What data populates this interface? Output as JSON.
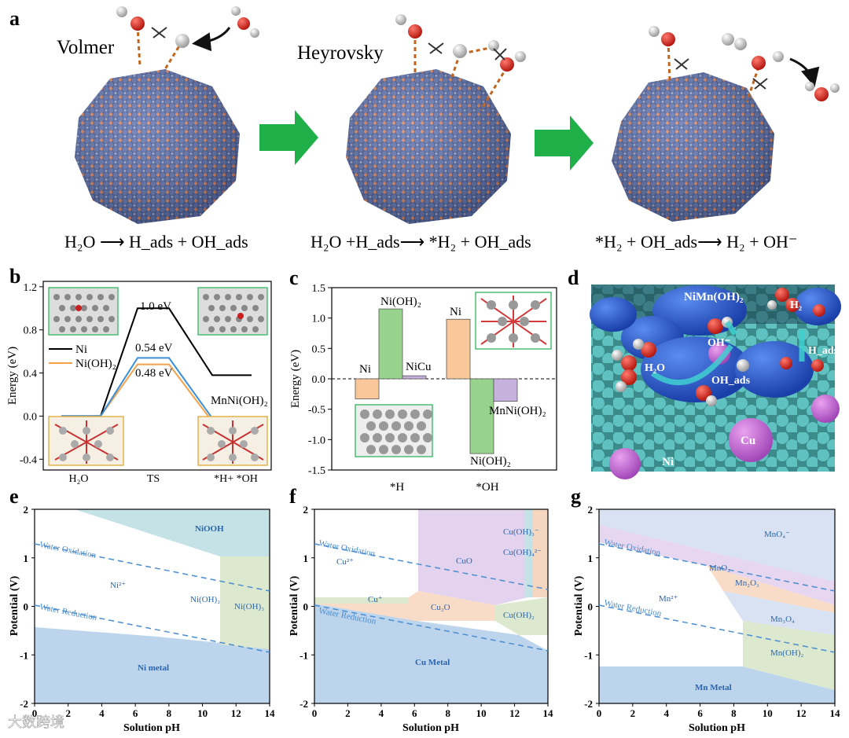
{
  "panel_labels": {
    "a": "a",
    "b": "b",
    "c": "c",
    "d": "d",
    "e": "e",
    "f": "f",
    "g": "g"
  },
  "panel_a": {
    "step1_label": "Volmer",
    "step2_label": "Heyrovsky",
    "eq1": "H₂O ⟶ H_ads + OH_ads",
    "eq2": "H₂O +H_ads⟶ *H₂ + OH_ads",
    "eq3": "*H₂ + OH_ads⟶ H₂ + OH⁻",
    "colors": {
      "arrow": "#1fb04a",
      "ni_atom": "#5b6fa8",
      "cu_atom": "#d97b5c",
      "dash": "#c0661f"
    }
  },
  "panel_d": {
    "labels": [
      "NiMn(OH)₂",
      "H₂",
      "OH⁻",
      "H₂O",
      "OH_ads",
      "H_ads",
      "Cu",
      "Ni"
    ]
  },
  "watermark": "大数跨境",
  "chart_data": [
    {
      "panel": "b",
      "type": "line",
      "xlabel": "",
      "ylabel": "Energy (eV)",
      "ylim": [
        -0.5,
        1.25
      ],
      "yticks": [
        "-0.4",
        "0.0",
        "0.4",
        "0.8",
        "1.2"
      ],
      "categories": [
        "H₂O",
        "TS",
        "*H+ *OH"
      ],
      "series": [
        {
          "name": "Ni",
          "color": "#000000",
          "values": [
            0.0,
            1.0,
            0.38
          ]
        },
        {
          "name": "Ni(OH)₂",
          "color": "#f5a04a",
          "values": [
            0.0,
            0.48,
            -0.05
          ]
        },
        {
          "name": "",
          "color": "#3a8fd9",
          "values": [
            0.0,
            0.54,
            -0.02
          ]
        }
      ],
      "annotations": [
        "1.0 eV",
        "0.54 eV",
        "0.48 eV",
        "MnNi(OH)₂"
      ]
    },
    {
      "panel": "c",
      "type": "bar",
      "ylabel": "Energy (eV)",
      "ylim": [
        -1.5,
        1.5
      ],
      "yticks": [
        "-1.5",
        "-1.0",
        "-0.5",
        "0.0",
        "0.5",
        "1.0",
        "1.5"
      ],
      "categories": [
        "*H",
        "*OH"
      ],
      "series": [
        {
          "name": "Ni",
          "color": "#f9c79a",
          "values": [
            -0.33,
            0.98
          ]
        },
        {
          "name": "Ni(OH)₂",
          "color": "#98d38e",
          "values": [
            1.15,
            -1.23
          ]
        },
        {
          "name": "NiCu",
          "color": "#c6b0dc",
          "values": [
            0.05,
            null
          ]
        },
        {
          "name": "MnNi(OH)₂",
          "color": "#c6b0dc",
          "values": [
            null,
            -0.37
          ]
        }
      ]
    },
    {
      "panel": "e",
      "type": "area",
      "xlabel": "Solution pH",
      "ylabel": "Potential (V)",
      "xlim": [
        0,
        14
      ],
      "ylim": [
        -2,
        2
      ],
      "xticks": [
        "0",
        "2",
        "4",
        "6",
        "8",
        "10",
        "12",
        "14"
      ],
      "yticks": [
        "-2",
        "-1",
        "0",
        "1",
        "2"
      ],
      "regions": [
        "NiOOH",
        "Ni²⁺",
        "Ni(OH)₂",
        "Ni(OH)₃",
        "Ni metal"
      ],
      "lines": [
        "Water Oxidation",
        "Water Reduction"
      ]
    },
    {
      "panel": "f",
      "type": "area",
      "xlabel": "Solution pH",
      "ylabel": "Potential (V)",
      "xlim": [
        0,
        14
      ],
      "ylim": [
        -2,
        2
      ],
      "xticks": [
        "0",
        "2",
        "4",
        "6",
        "8",
        "10",
        "12",
        "14"
      ],
      "yticks": [
        "-2",
        "-1",
        "0",
        "1",
        "2"
      ],
      "regions": [
        "Cu(OH)₃⁻",
        "Cu(OH)₄²⁻",
        "Cu²⁺",
        "CuO",
        "Cu⁺",
        "Cu₂O",
        "Cu(OH)₂",
        "Cu Metal"
      ],
      "lines": [
        "Water Oxidation",
        "Water Reduction"
      ]
    },
    {
      "panel": "g",
      "type": "area",
      "xlabel": "Solution pH",
      "ylabel": "Potential (V)",
      "xlim": [
        0,
        14
      ],
      "ylim": [
        -2,
        2
      ],
      "xticks": [
        "0",
        "2",
        "4",
        "6",
        "8",
        "10",
        "12",
        "14"
      ],
      "yticks": [
        "-2",
        "-1",
        "0",
        "1",
        "2"
      ],
      "regions": [
        "MnO₄⁻",
        "MnO₂",
        "Mn₂O₃",
        "Mn²⁺",
        "Mn₃O₄",
        "Mn(OH)₂",
        "Mn Metal"
      ],
      "lines": [
        "Water Oxidation",
        "Water Reduction"
      ]
    }
  ]
}
